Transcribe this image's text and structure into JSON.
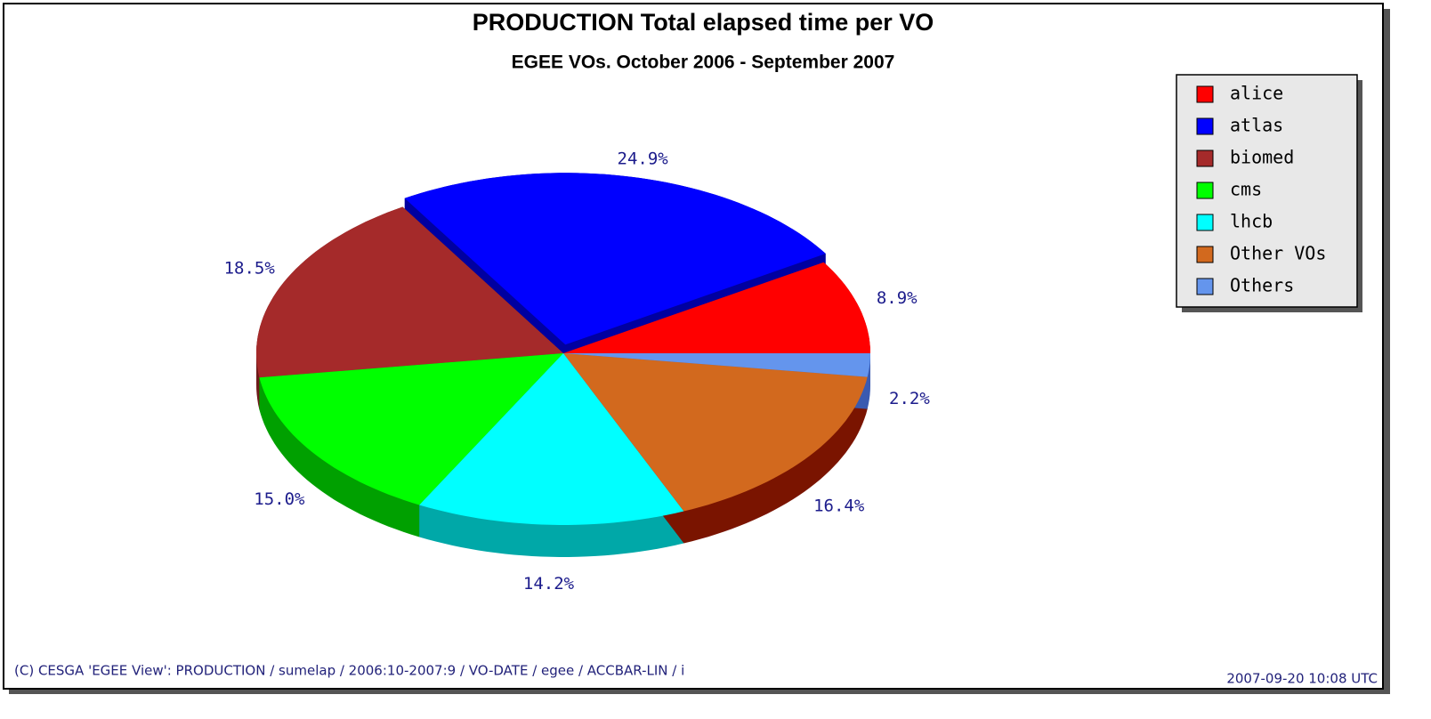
{
  "chart_data": {
    "type": "pie",
    "title": "PRODUCTION Total elapsed time per VO",
    "subtitle": "EGEE VOs. October 2006 - September 2007",
    "categories": [
      "alice",
      "atlas",
      "biomed",
      "cms",
      "lhcb",
      "Other VOs",
      "Others"
    ],
    "values": [
      8.9,
      24.9,
      18.5,
      15.0,
      14.2,
      16.4,
      2.2
    ],
    "value_labels": [
      "8.9%",
      "24.9%",
      "18.5%",
      "15.0%",
      "14.2%",
      "16.4%",
      "2.2%"
    ],
    "colors": [
      "#ff0000",
      "#0000ff",
      "#a52a2a",
      "#00ff00",
      "#00ffff",
      "#d2691e",
      "#6495ed"
    ],
    "side_colors": [
      "#b40000",
      "#0000a0",
      "#6e1a1a",
      "#00a000",
      "#00a8a8",
      "#7a1400",
      "#3a5ab0"
    ],
    "exploded": "atlas",
    "legend": "upper right",
    "footer": "(C) CESGA 'EGEE View': PRODUCTION / sumelap / 2006:10-2007:9 / VO-DATE / egee / ACCBAR-LIN / i",
    "timestamp": "2007-09-20 10:08 UTC"
  }
}
